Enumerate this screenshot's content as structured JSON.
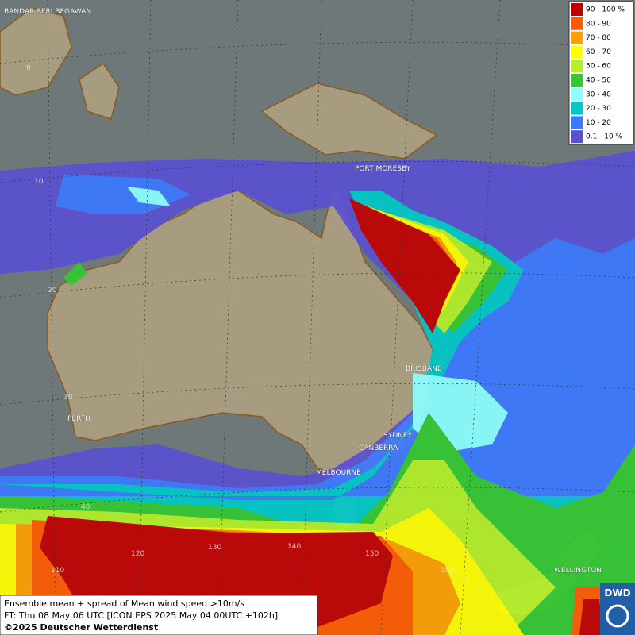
{
  "map": {
    "legend": [
      {
        "label": "90 - 100 %",
        "color": "#c00000"
      },
      {
        "label": "80 - 90",
        "color": "#ff5a00"
      },
      {
        "label": "70 - 80",
        "color": "#ffa000"
      },
      {
        "label": "60 - 70",
        "color": "#ffff00"
      },
      {
        "label": "50 - 60",
        "color": "#b4f028"
      },
      {
        "label": "40 - 50",
        "color": "#32c832"
      },
      {
        "label": "30 - 40",
        "color": "#8cffff"
      },
      {
        "label": "20 - 30",
        "color": "#00c8c8"
      },
      {
        "label": "10 - 20",
        "color": "#3c78ff"
      },
      {
        "label": "0.1 - 10 %",
        "color": "#5a50d2"
      }
    ],
    "cities": [
      "BANDAR SERI BEGAWAN",
      "PORT MORESBY",
      "BRISBANE",
      "PERTH",
      "SYDNEY",
      "CANBERRA",
      "MELBOURNE",
      "WELLINGTON"
    ],
    "grid_labels": [
      "0",
      "10",
      "20",
      "30",
      "40",
      "110",
      "120",
      "130",
      "140",
      "150",
      "160"
    ],
    "footer": [
      "Ensemble mean + spread of Mean wind speed >10m/s",
      "FT: Thu 08 May 06 UTC [ICON EPS 2025 May 04 00UTC +102h]",
      "©2025 Deutscher Wetterdienst"
    ],
    "logo": "DWD"
  }
}
